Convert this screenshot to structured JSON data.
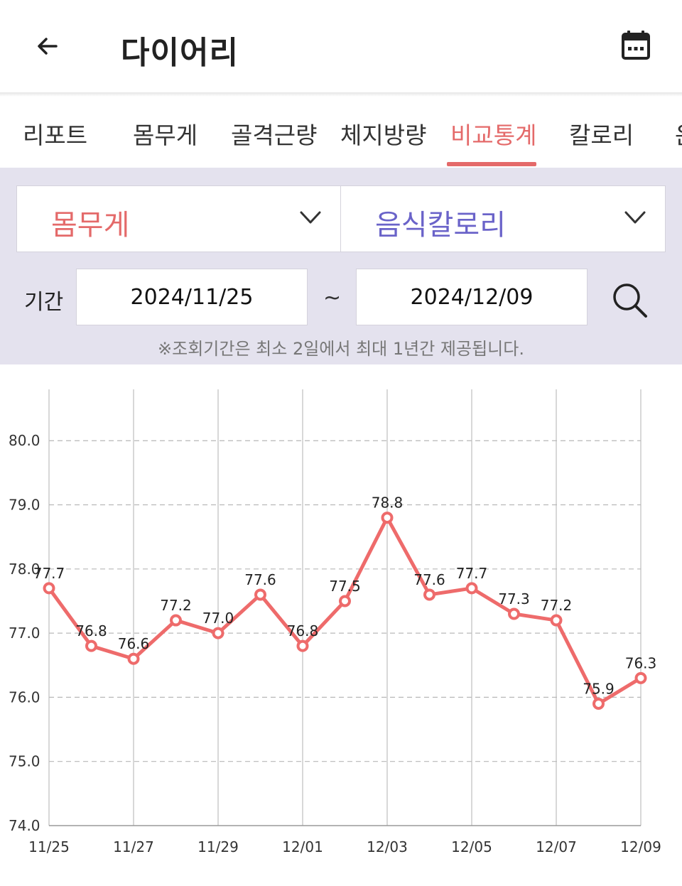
{
  "header": {
    "title": "다이어리",
    "back_icon": "arrow-left-icon",
    "calendar_icon": "calendar-icon"
  },
  "tabs": [
    {
      "label": "리포트",
      "active": false
    },
    {
      "label": "몸무게",
      "active": false
    },
    {
      "label": "골격근량",
      "active": false
    },
    {
      "label": "체지방량",
      "active": false
    },
    {
      "label": "비교통계",
      "active": true
    },
    {
      "label": "칼로리",
      "active": false
    },
    {
      "label": "운",
      "active": false
    }
  ],
  "filter": {
    "left_select": {
      "value": "몸무게",
      "color": "#e46a6a"
    },
    "right_select": {
      "value": "음식칼로리",
      "color": "#6a63c9"
    },
    "period_label": "기간",
    "start_date": "2024/11/25",
    "separator": "~",
    "end_date": "2024/12/09",
    "note": "※조회기간은 최소 2일에서 최대 1년간 제공됩니다."
  },
  "colors": {
    "accent": "#e46a6a",
    "secondary": "#6a63c9",
    "filter_bg": "#e4e2ee"
  },
  "chart_data": {
    "type": "line",
    "x": [
      "11/25",
      "11/26",
      "11/27",
      "11/28",
      "11/29",
      "11/30",
      "12/01",
      "12/02",
      "12/03",
      "12/04",
      "12/05",
      "12/06",
      "12/07",
      "12/08",
      "12/09"
    ],
    "x_tick_labels": [
      "11/25",
      "11/27",
      "11/29",
      "12/01",
      "12/03",
      "12/05",
      "12/07",
      "12/09"
    ],
    "series": [
      {
        "values": [
          77.7,
          76.8,
          76.6,
          77.2,
          77.0,
          77.6,
          76.8,
          77.5,
          78.8,
          77.6,
          77.7,
          77.3,
          77.2,
          75.9,
          76.3
        ],
        "value_labels": [
          "77.7",
          "76.8",
          "76.6",
          "77.2",
          "77.0",
          "77.6",
          "76.8",
          "77.5",
          "78.8",
          "77.6",
          "77.7",
          "77.3",
          "77.2",
          "75.9",
          "76.3"
        ],
        "color": "#ee6b6b"
      }
    ],
    "y_tick_labels": [
      "74.0",
      "75.0",
      "76.0",
      "77.0",
      "78.0",
      "79.0",
      "80.0"
    ],
    "y_ticks": [
      74,
      75,
      76,
      77,
      78,
      79,
      80
    ],
    "ylim": [
      74,
      80.8
    ],
    "grid": true
  }
}
